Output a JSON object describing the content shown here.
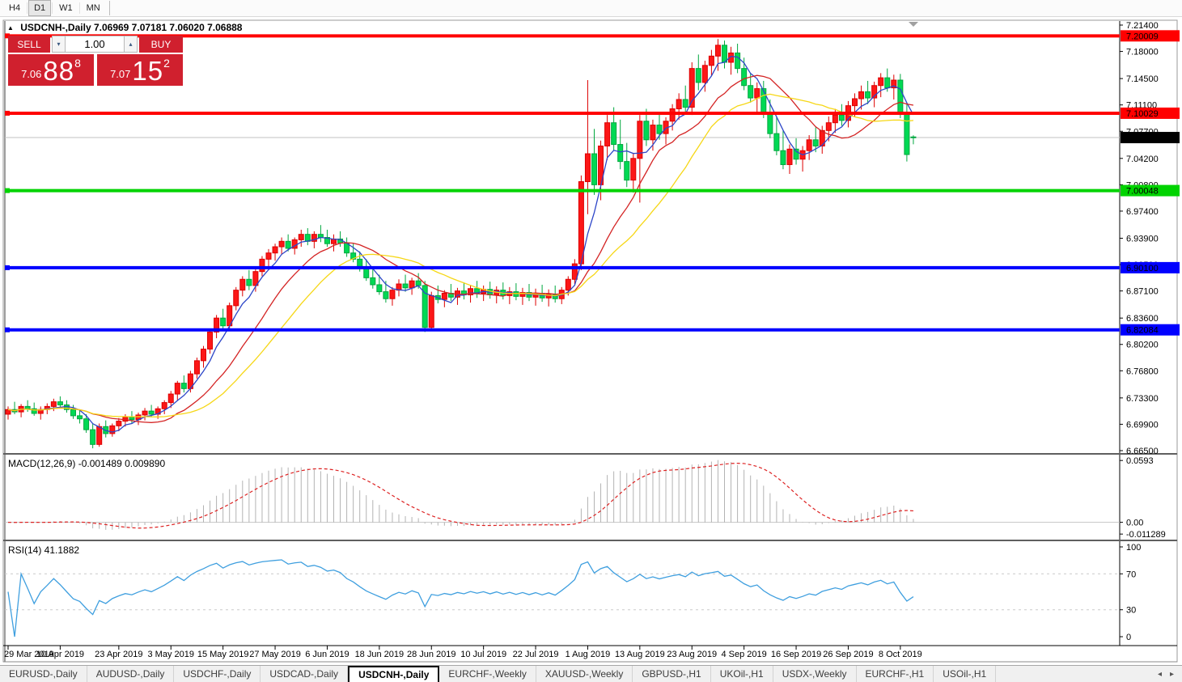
{
  "toolbar": {
    "timeframes": [
      "H4",
      "D1",
      "W1",
      "MN"
    ],
    "active_timeframe": "D1"
  },
  "window": {
    "title": {
      "symbol": "USDCNH-,Daily",
      "ohlc": "7.06969 7.07181 7.06020 7.06888"
    },
    "trade_panel": {
      "sell_label": "SELL",
      "buy_label": "BUY",
      "volume": "1.00",
      "sell_price": {
        "prefix": "7.06",
        "big": "88",
        "sup": "8"
      },
      "buy_price": {
        "prefix": "7.07",
        "big": "15",
        "sup": "2"
      },
      "accent_red": "#d0202e"
    }
  },
  "icons": {
    "collapse": "▲",
    "spin_up": "▴",
    "spin_down": "▾",
    "shift_marker": "▼",
    "tab_left": "◂",
    "tab_right": "▸"
  },
  "tabs": {
    "items": [
      "EURUSD-,Daily",
      "AUDUSD-,Daily",
      "USDCHF-,Daily",
      "USDCAD-,Daily",
      "USDCNH-,Daily",
      "EURCHF-,Weekly",
      "XAUUSD-,Weekly",
      "GBPUSD-,H1",
      "UKOil-,H1",
      "USDX-,Weekly",
      "EURCHF-,H1",
      "USOil-,H1"
    ],
    "active_index": 4
  },
  "chart_data": {
    "type": "candlestick",
    "title": "USDCNH-,Daily",
    "ylim": [
      6.665,
      7.214
    ],
    "price_ticks": [
      "7.21400",
      "7.18000",
      "7.14500",
      "7.11100",
      "7.07700",
      "7.04200",
      "7.00800",
      "6.97400",
      "6.93900",
      "6.90500",
      "6.87100",
      "6.83600",
      "6.80200",
      "6.76800",
      "6.73300",
      "6.69900",
      "6.66500"
    ],
    "date_ticks": [
      {
        "label": "29 Mar 2019",
        "bar": 0
      },
      {
        "label": "10 Apr 2019",
        "bar": 8
      },
      {
        "label": "23 Apr 2019",
        "bar": 17
      },
      {
        "label": "3 May 2019",
        "bar": 25
      },
      {
        "label": "15 May 2019",
        "bar": 33
      },
      {
        "label": "27 May 2019",
        "bar": 41
      },
      {
        "label": "6 Jun 2019",
        "bar": 49
      },
      {
        "label": "18 Jun 2019",
        "bar": 57
      },
      {
        "label": "28 Jun 2019",
        "bar": 65
      },
      {
        "label": "10 Jul 2019",
        "bar": 73
      },
      {
        "label": "22 Jul 2019",
        "bar": 81
      },
      {
        "label": "1 Aug 2019",
        "bar": 89
      },
      {
        "label": "13 Aug 2019",
        "bar": 97
      },
      {
        "label": "23 Aug 2019",
        "bar": 105
      },
      {
        "label": "4 Sep 2019",
        "bar": 113
      },
      {
        "label": "16 Sep 2019",
        "bar": 121
      },
      {
        "label": "26 Sep 2019",
        "bar": 129
      },
      {
        "label": "8 Oct 2019",
        "bar": 137
      }
    ],
    "up_color_means": "red-up green-down scheme",
    "candles": [
      [
        6.712,
        6.722,
        6.705,
        6.718
      ],
      [
        6.718,
        6.728,
        6.712,
        6.715
      ],
      [
        6.715,
        6.725,
        6.708,
        6.722
      ],
      [
        6.722,
        6.73,
        6.715,
        6.719
      ],
      [
        6.719,
        6.727,
        6.71,
        6.713
      ],
      [
        6.713,
        6.722,
        6.705,
        6.718
      ],
      [
        6.718,
        6.726,
        6.712,
        6.722
      ],
      [
        6.722,
        6.732,
        6.716,
        6.728
      ],
      [
        6.728,
        6.735,
        6.72,
        6.724
      ],
      [
        6.724,
        6.73,
        6.714,
        6.718
      ],
      [
        6.718,
        6.724,
        6.706,
        6.71
      ],
      [
        6.71,
        6.718,
        6.7,
        6.706
      ],
      [
        6.706,
        6.712,
        6.688,
        6.692
      ],
      [
        6.692,
        6.7,
        6.668,
        6.673
      ],
      [
        6.673,
        6.7,
        6.67,
        6.696
      ],
      [
        6.696,
        6.704,
        6.682,
        6.687
      ],
      [
        6.687,
        6.7,
        6.683,
        6.697
      ],
      [
        6.697,
        6.707,
        6.69,
        6.703
      ],
      [
        6.703,
        6.712,
        6.696,
        6.708
      ],
      [
        6.708,
        6.716,
        6.7,
        6.705
      ],
      [
        6.705,
        6.714,
        6.698,
        6.711
      ],
      [
        6.711,
        6.72,
        6.704,
        6.716
      ],
      [
        6.716,
        6.724,
        6.708,
        6.712
      ],
      [
        6.712,
        6.722,
        6.706,
        6.719
      ],
      [
        6.719,
        6.73,
        6.712,
        6.727
      ],
      [
        6.727,
        6.742,
        6.72,
        6.738
      ],
      [
        6.738,
        6.755,
        6.73,
        6.752
      ],
      [
        6.752,
        6.762,
        6.74,
        6.745
      ],
      [
        6.745,
        6.768,
        6.74,
        6.764
      ],
      [
        6.764,
        6.785,
        6.758,
        6.781
      ],
      [
        6.781,
        6.8,
        6.772,
        6.796
      ],
      [
        6.796,
        6.822,
        6.79,
        6.818
      ],
      [
        6.818,
        6.84,
        6.81,
        6.836
      ],
      [
        6.836,
        6.848,
        6.82,
        6.826
      ],
      [
        6.826,
        6.856,
        6.822,
        6.852
      ],
      [
        6.852,
        6.876,
        6.846,
        6.872
      ],
      [
        6.872,
        6.89,
        6.864,
        6.886
      ],
      [
        6.886,
        6.898,
        6.872,
        6.878
      ],
      [
        6.878,
        6.9,
        6.87,
        6.896
      ],
      [
        6.896,
        6.916,
        6.89,
        6.912
      ],
      [
        6.912,
        6.925,
        6.902,
        6.92
      ],
      [
        6.92,
        6.932,
        6.91,
        6.928
      ],
      [
        6.928,
        6.94,
        6.918,
        6.935
      ],
      [
        6.935,
        6.944,
        6.922,
        6.926
      ],
      [
        6.926,
        6.94,
        6.918,
        6.937
      ],
      [
        6.937,
        6.95,
        6.928,
        6.944
      ],
      [
        6.944,
        6.952,
        6.93,
        6.935
      ],
      [
        6.935,
        6.948,
        6.926,
        6.944
      ],
      [
        6.944,
        6.956,
        6.934,
        6.94
      ],
      [
        6.94,
        6.95,
        6.928,
        6.932
      ],
      [
        6.932,
        6.944,
        6.922,
        6.938
      ],
      [
        6.938,
        6.948,
        6.928,
        6.933
      ],
      [
        6.933,
        6.94,
        6.915,
        6.92
      ],
      [
        6.92,
        6.932,
        6.908,
        6.912
      ],
      [
        6.912,
        6.922,
        6.896,
        6.9
      ],
      [
        6.9,
        6.912,
        6.884,
        6.888
      ],
      [
        6.888,
        6.902,
        6.874,
        6.879
      ],
      [
        6.879,
        6.892,
        6.866,
        6.87
      ],
      [
        6.87,
        6.884,
        6.856,
        6.861
      ],
      [
        6.861,
        6.876,
        6.852,
        6.872
      ],
      [
        6.872,
        6.886,
        6.864,
        6.88
      ],
      [
        6.88,
        6.892,
        6.87,
        6.875
      ],
      [
        6.875,
        6.888,
        6.866,
        6.884
      ],
      [
        6.884,
        6.894,
        6.874,
        6.878
      ],
      [
        6.878,
        6.884,
        6.818,
        6.824
      ],
      [
        6.824,
        6.87,
        6.82,
        6.865
      ],
      [
        6.865,
        6.878,
        6.855,
        6.86
      ],
      [
        6.86,
        6.872,
        6.85,
        6.868
      ],
      [
        6.868,
        6.88,
        6.858,
        6.863
      ],
      [
        6.863,
        6.875,
        6.853,
        6.871
      ],
      [
        6.871,
        6.882,
        6.86,
        6.866
      ],
      [
        6.866,
        6.878,
        6.856,
        6.874
      ],
      [
        6.874,
        6.884,
        6.862,
        6.868
      ],
      [
        6.868,
        6.878,
        6.858,
        6.873
      ],
      [
        6.873,
        6.883,
        6.861,
        6.866
      ],
      [
        6.866,
        6.877,
        6.855,
        6.872
      ],
      [
        6.872,
        6.882,
        6.86,
        6.865
      ],
      [
        6.865,
        6.876,
        6.854,
        6.87
      ],
      [
        6.87,
        6.881,
        6.859,
        6.864
      ],
      [
        6.864,
        6.875,
        6.853,
        6.869
      ],
      [
        6.869,
        6.88,
        6.858,
        6.863
      ],
      [
        6.863,
        6.874,
        6.852,
        6.868
      ],
      [
        6.868,
        6.879,
        6.857,
        6.862
      ],
      [
        6.862,
        6.873,
        6.851,
        6.867
      ],
      [
        6.867,
        6.878,
        6.856,
        6.861
      ],
      [
        6.861,
        6.876,
        6.854,
        6.872
      ],
      [
        6.872,
        6.89,
        6.865,
        6.886
      ],
      [
        6.886,
        6.912,
        6.88,
        6.906
      ],
      [
        6.906,
        7.02,
        6.898,
        7.012
      ],
      [
        7.012,
        7.143,
        6.97,
        7.048
      ],
      [
        7.048,
        7.08,
        6.995,
        7.008
      ],
      [
        7.008,
        7.065,
        6.988,
        7.058
      ],
      [
        7.058,
        7.098,
        7.04,
        7.088
      ],
      [
        7.088,
        7.108,
        7.052,
        7.06
      ],
      [
        7.06,
        7.092,
        7.028,
        7.038
      ],
      [
        7.038,
        7.062,
        7.005,
        7.014
      ],
      [
        7.014,
        7.048,
        6.998,
        7.042
      ],
      [
        7.042,
        7.098,
        6.985,
        7.09
      ],
      [
        7.09,
        7.106,
        7.058,
        7.066
      ],
      [
        7.066,
        7.092,
        7.052,
        7.085
      ],
      [
        7.085,
        7.1,
        7.066,
        7.074
      ],
      [
        7.074,
        7.095,
        7.06,
        7.09
      ],
      [
        7.09,
        7.112,
        7.078,
        7.106
      ],
      [
        7.106,
        7.126,
        7.092,
        7.118
      ],
      [
        7.118,
        7.136,
        7.1,
        7.108
      ],
      [
        7.108,
        7.166,
        7.098,
        7.158
      ],
      [
        7.158,
        7.176,
        7.13,
        7.14
      ],
      [
        7.14,
        7.168,
        7.128,
        7.162
      ],
      [
        7.162,
        7.182,
        7.148,
        7.174
      ],
      [
        7.174,
        7.196,
        7.155,
        7.188
      ],
      [
        7.188,
        7.194,
        7.158,
        7.166
      ],
      [
        7.166,
        7.186,
        7.15,
        7.178
      ],
      [
        7.178,
        7.19,
        7.152,
        7.158
      ],
      [
        7.158,
        7.172,
        7.13,
        7.136
      ],
      [
        7.136,
        7.152,
        7.114,
        7.12
      ],
      [
        7.12,
        7.14,
        7.1,
        7.132
      ],
      [
        7.132,
        7.142,
        7.094,
        7.1
      ],
      [
        7.1,
        7.118,
        7.068,
        7.074
      ],
      [
        7.074,
        7.095,
        7.046,
        7.052
      ],
      [
        7.052,
        7.078,
        7.028,
        7.034
      ],
      [
        7.034,
        7.06,
        7.022,
        7.054
      ],
      [
        7.054,
        7.068,
        7.034,
        7.041
      ],
      [
        7.041,
        7.058,
        7.025,
        7.052
      ],
      [
        7.052,
        7.072,
        7.04,
        7.066
      ],
      [
        7.066,
        7.082,
        7.05,
        7.058
      ],
      [
        7.058,
        7.084,
        7.048,
        7.078
      ],
      [
        7.078,
        7.096,
        7.064,
        7.088
      ],
      [
        7.088,
        7.106,
        7.075,
        7.098
      ],
      [
        7.098,
        7.112,
        7.084,
        7.091
      ],
      [
        7.091,
        7.116,
        7.082,
        7.11
      ],
      [
        7.11,
        7.126,
        7.096,
        7.119
      ],
      [
        7.119,
        7.136,
        7.105,
        7.128
      ],
      [
        7.128,
        7.142,
        7.112,
        7.12
      ],
      [
        7.12,
        7.141,
        7.108,
        7.136
      ],
      [
        7.136,
        7.152,
        7.121,
        7.146
      ],
      [
        7.146,
        7.158,
        7.128,
        7.133
      ],
      [
        7.133,
        7.15,
        7.118,
        7.143
      ],
      [
        7.143,
        7.151,
        7.094,
        7.099
      ],
      [
        7.099,
        7.112,
        7.038,
        7.047
      ],
      [
        7.06969,
        7.07181,
        7.0602,
        7.06888
      ]
    ],
    "moving_averages": [
      {
        "period": 5,
        "color": "#2d46c8"
      },
      {
        "period": 13,
        "color": "#d42424"
      },
      {
        "period": 21,
        "color": "#f6d716"
      }
    ],
    "hlines": [
      {
        "value": 7.20009,
        "label": "7.20009",
        "color": "#ff0000"
      },
      {
        "value": 7.10029,
        "label": "7.10029",
        "color": "#ff0000"
      },
      {
        "value": 7.00048,
        "label": "7.00048",
        "color": "#00d300"
      },
      {
        "value": 6.901,
        "label": "6.90100",
        "color": "#0000ff"
      },
      {
        "value": 6.82084,
        "label": "6.82084",
        "color": "#0000ff"
      }
    ],
    "current_price": {
      "value": 7.06888,
      "label": "7.06888",
      "badge_bg": "#000000",
      "line_color": "#c0c0c0"
    },
    "colors": {
      "up_fill": "#fc1717",
      "up_stroke": "#dd0000",
      "down_fill": "#00d954",
      "down_stroke": "#00a73e",
      "macd_hist": "#b3b3b3",
      "macd_signal": "#dd2222",
      "rsi_line": "#3f9fdf"
    },
    "macd": {
      "label": "MACD(12,26,9) -0.001489 0.009890",
      "fast": 12,
      "slow": 26,
      "signal": 9,
      "ylim": [
        -0.0135,
        0.061
      ],
      "ticks": [
        {
          "value": 0.0593,
          "label": "0.0593"
        },
        {
          "value": 0.0,
          "label": "0.00"
        },
        {
          "value": -0.011289,
          "label": "-0.011289"
        }
      ]
    },
    "rsi": {
      "label": "RSI(14) 41.1882",
      "period": 14,
      "levels": [
        70,
        30
      ],
      "ticks": [
        {
          "value": 100,
          "label": "100"
        },
        {
          "value": 70,
          "label": "70"
        },
        {
          "value": 30,
          "label": "30"
        },
        {
          "value": 0,
          "label": "0"
        }
      ],
      "ylim": [
        0,
        100
      ]
    }
  }
}
